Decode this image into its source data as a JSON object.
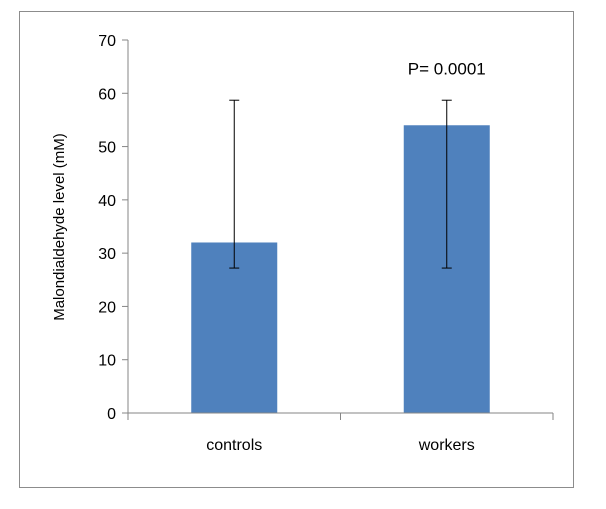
{
  "chart_data": {
    "type": "bar",
    "categories": [
      "controls",
      "workers"
    ],
    "values": [
      32,
      54
    ],
    "error_bars": [
      {
        "low": 27.2,
        "high": 58.7
      },
      {
        "low": 27.2,
        "high": 58.7
      }
    ],
    "title": "",
    "xlabel": "",
    "ylabel": "Malondialdehyde level (mM)",
    "ylim": [
      0,
      70
    ],
    "yticks": [
      0,
      10,
      20,
      30,
      40,
      50,
      60,
      70
    ],
    "grid": false,
    "bar_color": "#4f81bd",
    "annotations": [
      {
        "text": "P= 0.0001",
        "category": "workers",
        "y": 63.5
      }
    ]
  }
}
